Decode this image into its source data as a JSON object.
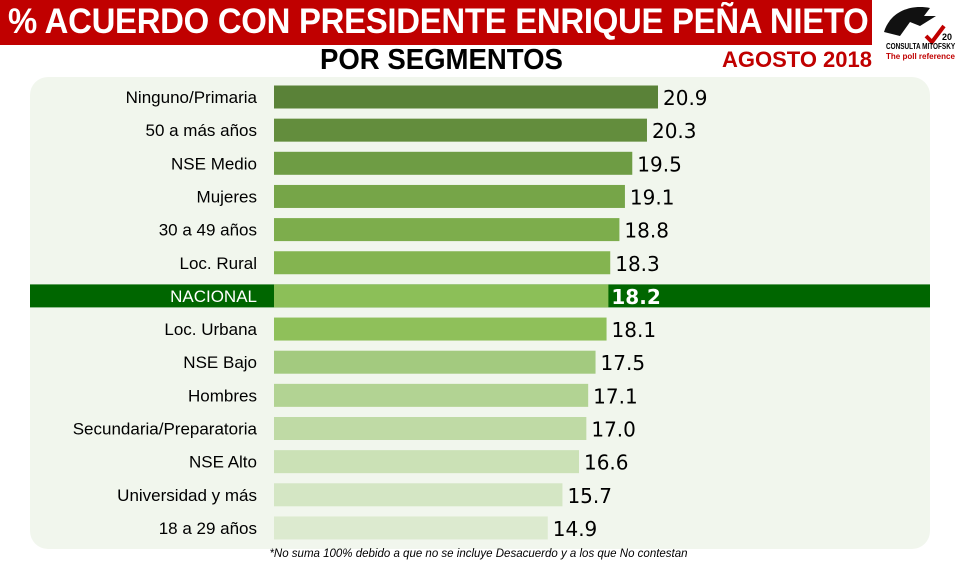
{
  "header": {
    "title": "% ACUERDO CON PRESIDENTE ENRIQUE PEÑA NIETO",
    "subtitle": "POR SEGMENTOS",
    "date": "AGOSTO 2018"
  },
  "logo": {
    "name": "CONSULTA MITOFSKY",
    "tagline": "The poll reference",
    "badge": "20"
  },
  "footnote": "*No suma 100% debido a que no se incluye Desacuerdo y a los que No contestan",
  "colors": {
    "title_bg": "#c00000",
    "highlight_band": "#006600",
    "panel_bg": "#f1f6ed"
  },
  "chart_data": {
    "type": "bar",
    "orientation": "horizontal",
    "title": "",
    "xlabel": "",
    "ylabel": "",
    "categories": [
      "Ninguno/Primaria",
      "50 a más años",
      "NSE Medio",
      "Mujeres",
      "30 a 49 años",
      "Loc. Rural",
      "NACIONAL",
      "Loc. Urbana",
      "NSE Bajo",
      "Hombres",
      "Secundaria/Preparatoria",
      "NSE Alto",
      "Universidad y más",
      "18 a 29 años"
    ],
    "values": [
      20.9,
      20.3,
      19.5,
      19.1,
      18.8,
      18.3,
      18.2,
      18.1,
      17.5,
      17.1,
      17.0,
      16.6,
      15.7,
      14.9
    ],
    "labels": [
      "20.9",
      "20.3",
      "19.5",
      "19.1",
      "18.8",
      "18.3",
      "18.2",
      "18.1",
      "17.5",
      "17.1",
      "17.0",
      "16.6",
      "15.7",
      "14.9"
    ],
    "highlight": "NACIONAL",
    "bar_colors": [
      "#5a8238",
      "#638d3d",
      "#6e9c44",
      "#76a548",
      "#7dad4c",
      "#84b450",
      "#8cbf58",
      "#8fc05a",
      "#a3ca7f",
      "#b2d393",
      "#bfdaa5",
      "#cbe1b6",
      "#d4e6c4",
      "#dceacf"
    ],
    "grid": false,
    "legend": "none"
  }
}
